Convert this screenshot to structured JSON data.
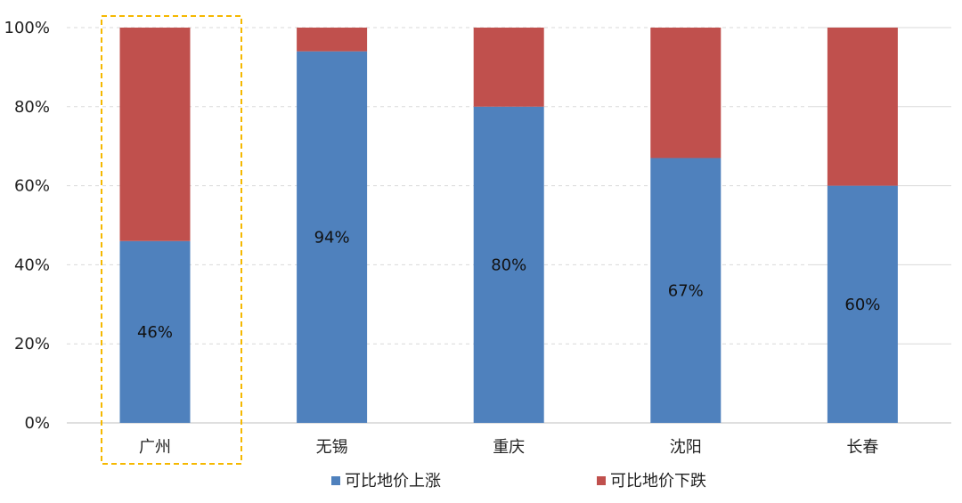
{
  "chart_data": {
    "type": "bar",
    "stacked": true,
    "percent": true,
    "categories": [
      "广州",
      "无锡",
      "重庆",
      "沈阳",
      "长春"
    ],
    "series": [
      {
        "name": "可比地价上涨",
        "values": [
          46,
          94,
          80,
          67,
          60
        ],
        "color": "#4f81bd"
      },
      {
        "name": "可比地价下跌",
        "values": [
          54,
          6,
          20,
          33,
          40
        ],
        "color": "#c0504d"
      }
    ],
    "data_labels": [
      "46%",
      "94%",
      "80%",
      "67%",
      "60%"
    ],
    "ylim": [
      0,
      100
    ],
    "yticks": [
      "0%",
      "20%",
      "40%",
      "60%",
      "80%",
      "100%"
    ],
    "grid": true,
    "legend": "bottom",
    "highlight_category": "广州",
    "highlight_color": "#f5b800"
  }
}
